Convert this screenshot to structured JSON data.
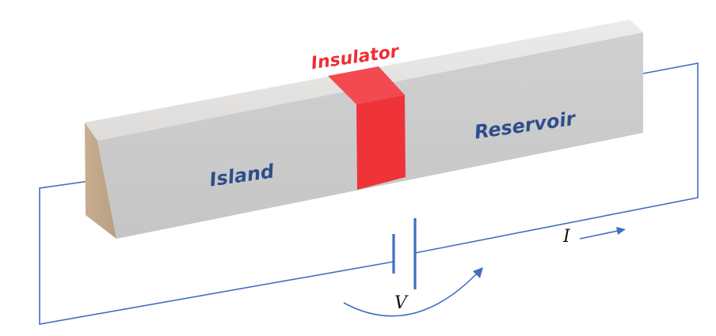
{
  "labels": {
    "insulator": "Insulator",
    "island": "Island",
    "reservoir": "Reservoir",
    "voltage": "V",
    "current": "I"
  },
  "colors": {
    "bar_top": "#e6e4e2",
    "bar_front": "#cbcbcb",
    "bar_end": "#c3a98c",
    "insulator_front": "#ee3339",
    "insulator_top": "#f44a50",
    "wire": "#3f6fc0",
    "region_text": "#2f4e8c",
    "insulator_text": "#ee2f36"
  }
}
